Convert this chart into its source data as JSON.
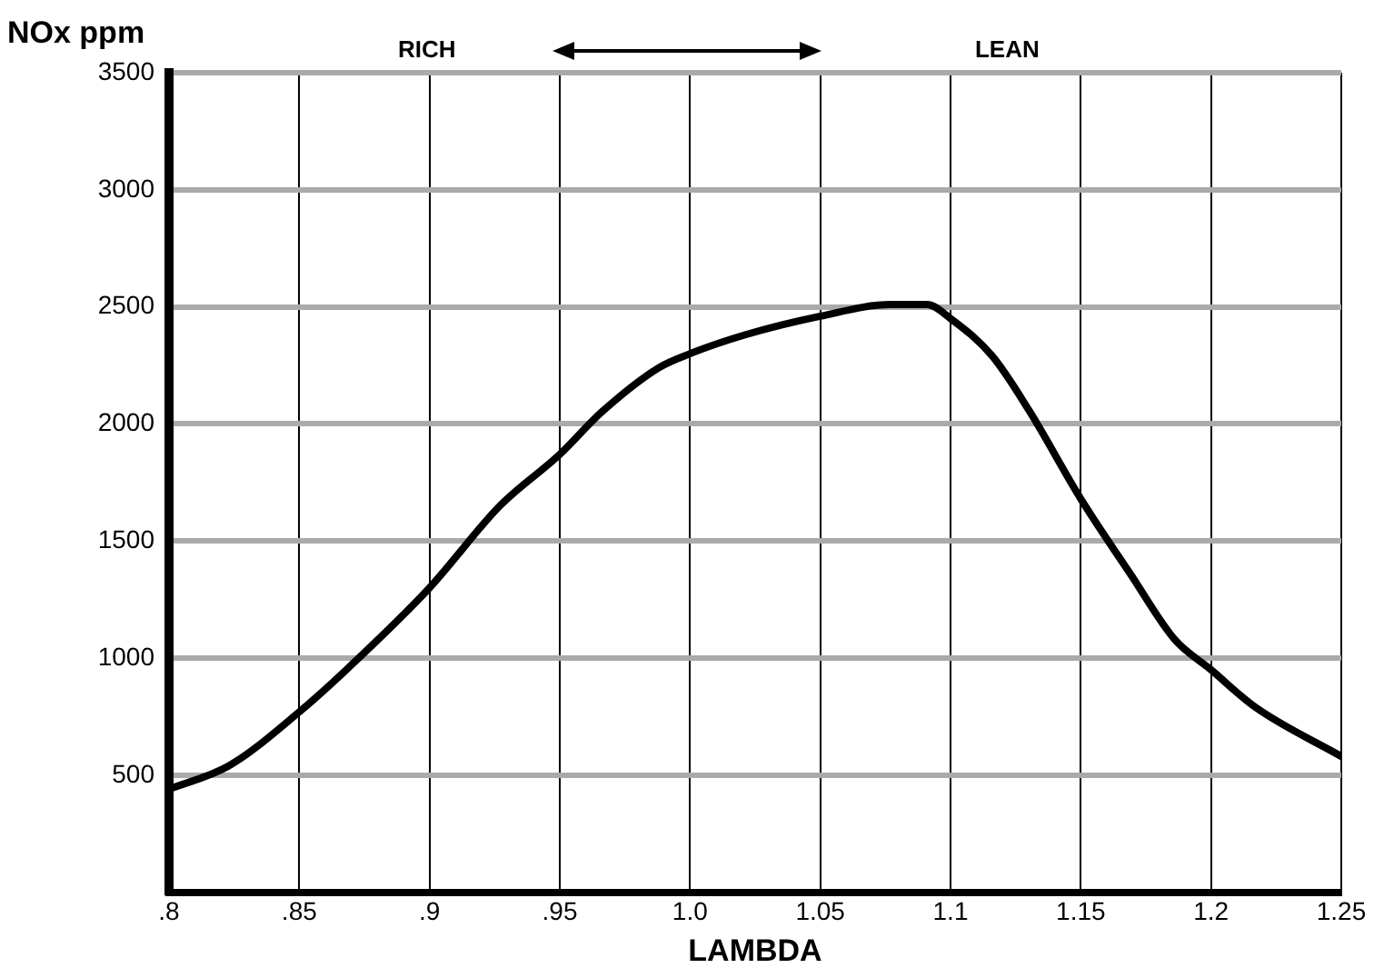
{
  "chart_data": {
    "type": "line",
    "xlabel": "LAMBDA",
    "ylabel": "NOx ppm",
    "annotations": [
      "RICH",
      "LEAN"
    ],
    "series": [
      {
        "color": "#000000",
        "x": [
          0.8,
          0.823,
          0.85,
          0.869,
          0.9,
          0.927,
          0.95,
          0.966,
          0.988,
          1.0,
          1.021,
          1.05,
          1.077,
          1.091,
          1.1,
          1.116,
          1.13,
          1.15,
          1.169,
          1.186,
          1.2,
          1.217,
          1.25
        ],
        "values": [
          440,
          540,
          770,
          960,
          1300,
          1650,
          1870,
          2050,
          2240,
          2300,
          2380,
          2460,
          2510,
          2510,
          2450,
          2290,
          2060,
          1680,
          1360,
          1080,
          950,
          790,
          580
        ]
      }
    ],
    "xlim": [
      0.8,
      1.25
    ],
    "xticks": [
      {
        "value": 0.8,
        "label": ".8"
      },
      {
        "value": 0.85,
        "label": ".85"
      },
      {
        "value": 0.9,
        "label": ".9"
      },
      {
        "value": 0.95,
        "label": ".95"
      },
      {
        "value": 1.0,
        "label": "1.0"
      },
      1.05,
      1.1,
      1.15,
      1.2,
      1.25
    ],
    "ylim": [
      0,
      3500
    ],
    "yticks": [
      500,
      1000,
      1500,
      2000,
      2500,
      3000,
      3500
    ],
    "grid": true,
    "legend": false,
    "marker": "none",
    "line_style": "solid"
  }
}
